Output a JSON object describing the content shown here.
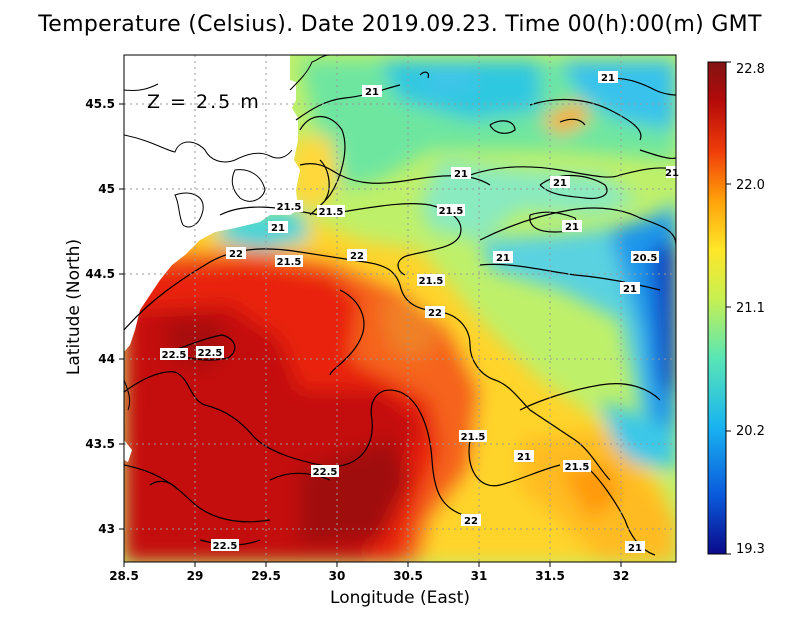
{
  "title": "Temperature (Celsius). Date 2019.09.23. Time 00(h):00(m)  GMT",
  "depth_label": "Z  =  2.5  m",
  "chart_data": {
    "type": "heatmap",
    "title": "Temperature (Celsius). Date 2019.09.23. Time 00(h):00(m)  GMT",
    "xlabel": "Longitude (East)",
    "ylabel": "Latitude (North)",
    "xlim": [
      28.5,
      32.4
    ],
    "ylim": [
      42.8,
      45.8
    ],
    "x_ticks": [
      "28.5",
      "29",
      "29.5",
      "30",
      "30.5",
      "31",
      "31.5",
      "32"
    ],
    "y_ticks": [
      "43",
      "43.5",
      "44",
      "44.5",
      "45",
      "45.5"
    ],
    "grid": true,
    "colorbar": {
      "min": 19.3,
      "max": 22.8,
      "tick_labels": [
        "22.8",
        "22.0",
        "21.1",
        "20.2",
        "19.3"
      ],
      "colors": [
        "#0a0a8a",
        "#0a5adc",
        "#19b4f0",
        "#5ae6b4",
        "#c8f050",
        "#ffe628",
        "#ffa00a",
        "#f03c0a",
        "#b40a0a",
        "#821414"
      ]
    },
    "contour_labels": [
      "21",
      "21",
      "21",
      "21",
      "21",
      "21",
      "21",
      "21",
      "21",
      "21",
      "21",
      "21.5",
      "21.5",
      "21.5",
      "21.5",
      "21.5",
      "21.5",
      "21.5",
      "22",
      "22",
      "22",
      "22",
      "22.5",
      "22.5",
      "22.5",
      "22.5",
      "20.5"
    ]
  }
}
